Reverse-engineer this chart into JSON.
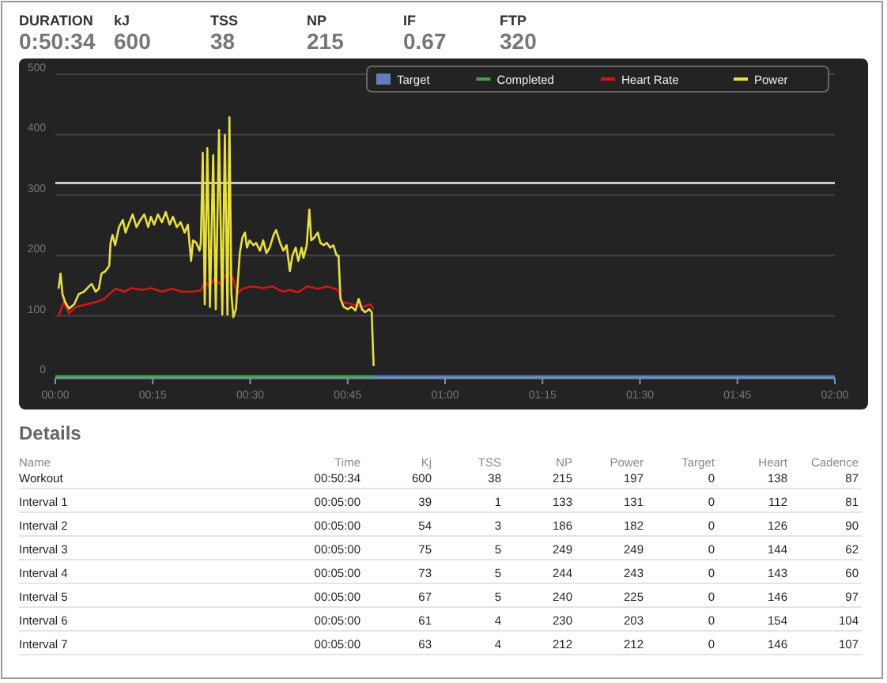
{
  "chart_data": [
    {
      "type": "other",
      "categories": [
        "DURATION",
        "kJ",
        "TSS",
        "NP",
        "IF",
        "FTP"
      ],
      "annotations": [
        "0:50:34",
        "600",
        "38",
        "215",
        "0.67",
        "320"
      ]
    },
    {
      "type": "line",
      "xlim": [
        0,
        120
      ],
      "xticks": [
        {
          "value": 0,
          "label": "00:00"
        },
        {
          "value": 15,
          "label": "00:15"
        },
        {
          "value": 30,
          "label": "00:30"
        },
        {
          "value": 45,
          "label": "00:45"
        },
        {
          "value": 60,
          "label": "01:00"
        },
        {
          "value": 75,
          "label": "01:15"
        },
        {
          "value": 90,
          "label": "01:30"
        },
        {
          "value": 105,
          "label": "01:45"
        },
        {
          "value": 120,
          "label": "02:00"
        }
      ],
      "ylim": [
        0,
        500
      ],
      "yticks": [
        0,
        100,
        200,
        300,
        400,
        500
      ],
      "grid": "y",
      "legend": "top right",
      "ref_lines": [
        {
          "axis": "y",
          "value": 320,
          "color": "#c8c8c8"
        }
      ],
      "series": [
        {
          "name": "Target",
          "type": "line",
          "color": "#5b7fc0",
          "x": [
            0,
            120
          ],
          "values": [
            0,
            0
          ]
        },
        {
          "name": "Completed",
          "type": "line",
          "color": "#3fa34d",
          "x": [
            0,
            49
          ],
          "values": [
            0,
            0
          ]
        },
        {
          "name": "Heart Rate",
          "type": "line",
          "color": "#d01818",
          "x": [
            0.5,
            1.3,
            2.1,
            3.2,
            4.8,
            6.3,
            7.5,
            8.3,
            9.3,
            10.6,
            11.8,
            13.3,
            14.8,
            16.4,
            17.9,
            19.5,
            21.0,
            22.4,
            23.0,
            23.7,
            24.5,
            25.3,
            26.1,
            26.8,
            27.4,
            28.0,
            28.8,
            30.3,
            31.9,
            33.4,
            35.0,
            36.1,
            37.3,
            38.8,
            40.4,
            41.9,
            43.5,
            44.1,
            45.8,
            47.3,
            48.5,
            49.0
          ],
          "values": [
            100,
            123,
            104,
            115,
            119,
            123,
            128,
            136,
            145,
            140,
            146,
            143,
            146,
            140,
            145,
            140,
            140,
            142,
            157,
            149,
            162,
            153,
            166,
            170,
            162,
            136,
            145,
            149,
            146,
            149,
            140,
            143,
            139,
            149,
            145,
            149,
            143,
            123,
            119,
            115,
            119,
            111
          ]
        },
        {
          "name": "Power",
          "type": "line",
          "color": "#e8e040",
          "x": [
            0.5,
            0.8,
            1.1,
            1.5,
            2.1,
            2.9,
            3.6,
            4.4,
            5.2,
            5.6,
            6.2,
            6.7,
            7.1,
            7.7,
            8.3,
            8.5,
            8.8,
            9.2,
            9.8,
            10.4,
            10.8,
            11.4,
            11.9,
            12.5,
            13.1,
            13.7,
            14.3,
            14.7,
            15.2,
            15.8,
            16.4,
            17.0,
            17.6,
            18.1,
            18.7,
            19.3,
            19.9,
            20.4,
            20.9,
            21.2,
            21.7,
            22.2,
            22.4,
            22.7,
            23.0,
            23.4,
            23.8,
            24.3,
            24.7,
            25.2,
            25.7,
            26.1,
            26.5,
            26.8,
            27.1,
            27.4,
            27.8,
            28.4,
            28.8,
            29.2,
            29.5,
            29.9,
            30.5,
            30.9,
            31.5,
            32.0,
            32.5,
            33.0,
            33.6,
            34.0,
            34.6,
            35.1,
            35.6,
            36.1,
            36.5,
            37.0,
            37.4,
            37.9,
            38.2,
            38.7,
            39.1,
            39.4,
            39.9,
            40.4,
            40.8,
            41.3,
            41.8,
            42.3,
            42.8,
            43.3,
            43.6,
            43.9,
            44.4,
            45.0,
            45.6,
            46.2,
            46.7,
            47.2,
            47.7,
            48.3,
            48.7,
            49.0
          ],
          "values": [
            145,
            170,
            136,
            123,
            112,
            119,
            136,
            140,
            149,
            153,
            140,
            145,
            170,
            174,
            183,
            221,
            234,
            217,
            247,
            259,
            238,
            255,
            268,
            247,
            259,
            268,
            247,
            264,
            251,
            268,
            255,
            272,
            251,
            264,
            247,
            255,
            238,
            251,
            191,
            225,
            221,
            208,
            221,
            370,
            119,
            378,
            115,
            366,
            111,
            408,
            102,
            400,
            102,
            429,
            136,
            98,
            111,
            204,
            230,
            238,
            213,
            225,
            217,
            221,
            208,
            225,
            204,
            213,
            234,
            242,
            221,
            208,
            217,
            174,
            200,
            213,
            191,
            213,
            196,
            217,
            276,
            225,
            230,
            238,
            221,
            217,
            221,
            213,
            217,
            200,
            200,
            128,
            115,
            111,
            115,
            109,
            128,
            111,
            106,
            111,
            106,
            17
          ]
        }
      ]
    },
    {
      "type": "other",
      "title": "Details",
      "categories": [
        "Name",
        "Time",
        "Kj",
        "TSS",
        "NP",
        "Power",
        "Target",
        "Heart",
        "Cadence"
      ],
      "annotations": [
        "Workout",
        "00:50:34",
        "600",
        "38",
        "215",
        "197",
        "0",
        "138",
        "87",
        "Interval 1",
        "00:05:00",
        "39",
        "1",
        "133",
        "131",
        "0",
        "112",
        "81",
        "Interval 2",
        "00:05:00",
        "54",
        "3",
        "186",
        "182",
        "0",
        "126",
        "90",
        "Interval 3",
        "00:05:00",
        "75",
        "5",
        "249",
        "249",
        "0",
        "144",
        "62",
        "Interval 4",
        "00:05:00",
        "73",
        "5",
        "244",
        "243",
        "0",
        "143",
        "60",
        "Interval 5",
        "00:05:00",
        "67",
        "5",
        "240",
        "225",
        "0",
        "146",
        "97",
        "Interval 6",
        "00:05:00",
        "61",
        "4",
        "230",
        "203",
        "0",
        "154",
        "104",
        "Interval 7",
        "00:05:00",
        "63",
        "4",
        "212",
        "212",
        "0",
        "146",
        "107"
      ]
    }
  ]
}
